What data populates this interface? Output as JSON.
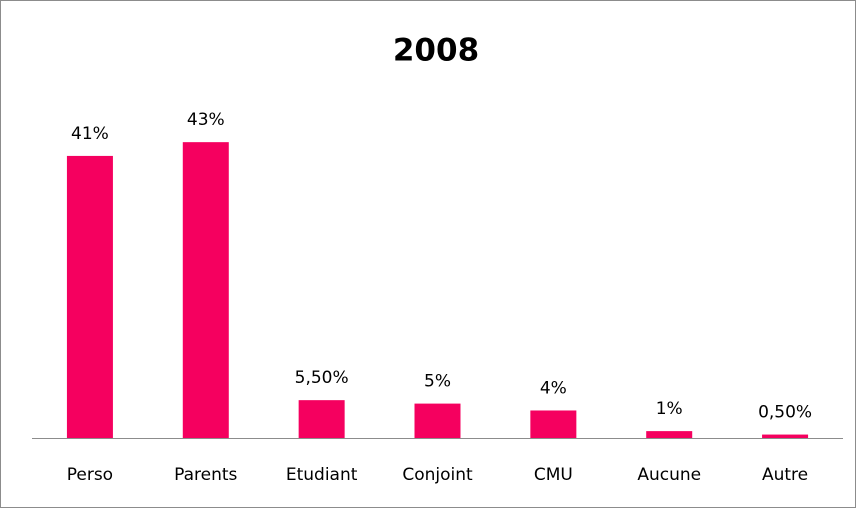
{
  "chart_data": {
    "type": "bar",
    "title": "2008",
    "categories": [
      "Perso",
      "Parents",
      "Etudiant",
      "Conjoint",
      "CMU",
      "Aucune",
      "Autre"
    ],
    "values": [
      41,
      43,
      5.5,
      5,
      4,
      1,
      0.5
    ],
    "value_labels": [
      "41%",
      "43%",
      "5,50%",
      "5%",
      "4%",
      "1%",
      "0,50%"
    ],
    "color": "#f5005f",
    "ylim": [
      0,
      50
    ]
  }
}
